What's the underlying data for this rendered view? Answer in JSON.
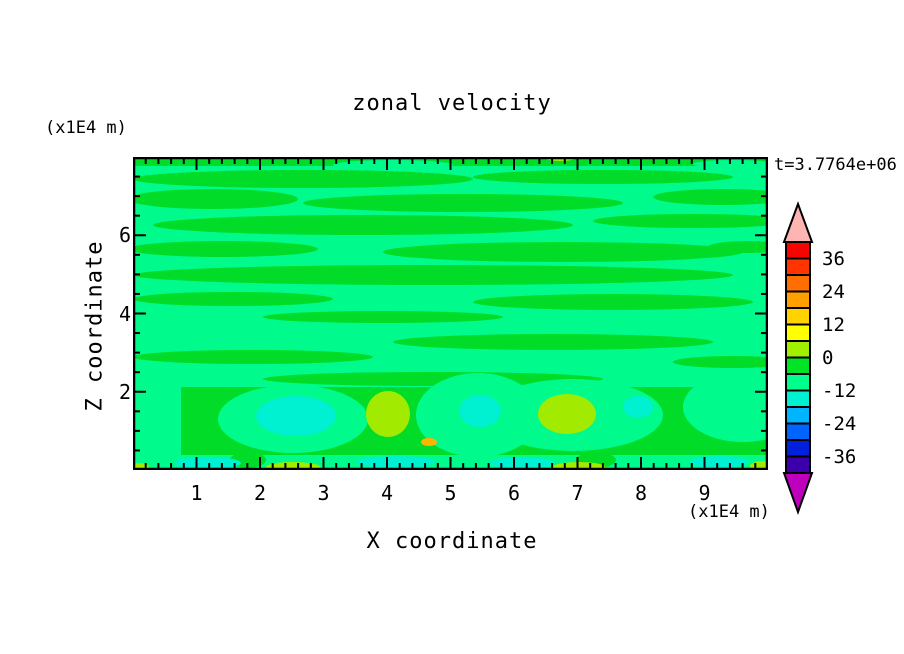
{
  "title": "zonal velocity",
  "time_label": "t=3.7764e+06",
  "axes": {
    "x": {
      "label": "X coordinate",
      "units": "(x1E4 m)",
      "ticks": [
        "1",
        "2",
        "3",
        "4",
        "5",
        "6",
        "7",
        "8",
        "9"
      ],
      "range": [
        0,
        10
      ],
      "major_step": 1,
      "minor_step": 0.2
    },
    "z": {
      "label": "Z coordinate",
      "units": "(x1E4 m)",
      "ticks": [
        "6",
        "4",
        "2"
      ],
      "range": [
        0,
        8
      ],
      "major_step": 2,
      "minor_step": 0.5
    }
  },
  "colorbar": {
    "labels": [
      "36",
      "24",
      "12",
      "0",
      "-12",
      "-24",
      "-36"
    ],
    "colors_top_to_bottom": [
      "#F80400",
      "#FF3400",
      "#FF6E00",
      "#FFA000",
      "#FFD200",
      "#FFFF00",
      "#A0F000",
      "#00E428",
      "#00FF8C",
      "#00F0D2",
      "#00B4FF",
      "#0064FF",
      "#0020DC",
      "#3C00AA"
    ],
    "over_color": "#FFB4B4",
    "under_color": "#BE00BE",
    "level_step": 6,
    "level_min": -42,
    "level_max": 42
  },
  "chart_data": {
    "type": "heatmap",
    "title": "zonal velocity",
    "xlabel": "X coordinate (x1E4 m)",
    "ylabel": "Z coordinate (x1E4 m)",
    "annotation": "t=3.7764e+06",
    "xlim": [
      0,
      10
    ],
    "ylim": [
      0,
      8
    ],
    "x_major_ticks": [
      1,
      2,
      3,
      4,
      5,
      6,
      7,
      8,
      9
    ],
    "z_major_ticks": [
      2,
      4,
      6
    ],
    "x_minor_interval": 0.2,
    "z_minor_interval": 0.5,
    "contour_levels": [
      -42,
      -36,
      -30,
      -24,
      -18,
      -12,
      -6,
      0,
      6,
      12,
      18,
      24,
      30,
      36,
      42
    ],
    "colorbar_tick_labels": [
      36,
      24,
      12,
      0,
      -12,
      -24,
      -36
    ],
    "legend_position": "right-vertical-colorbar-with-extend-arrows",
    "grid": false,
    "palette": {
      "spring_green_-6_0": "#00FA8C",
      "green_0_6": "#00DC28",
      "turquoise_-12_-6": "#00F0D2",
      "yellow_green_6_12": "#A2EB00",
      "amber_12_18": "#FFB400"
    },
    "field_description": "Zonal velocity cross-section, mostly near zero: interleaved wavy horizontal bands of green (0..6) and spring green (-6..0) for z>2.5; below z≈2 larger blobs with turquoise minima (≈-12) near (x≈2.6,z≈1.4) and (x≈5.5,z≈1.5), yellow-green maxima (≈+12) near (x≈4.1,z≈1.4) and (x≈6.9,z≈1.4), a small amber spot (≈+18) near (x≈4.7,z≈0.7), and a thin turquoise layer near z≈0.1-0.3"
  }
}
